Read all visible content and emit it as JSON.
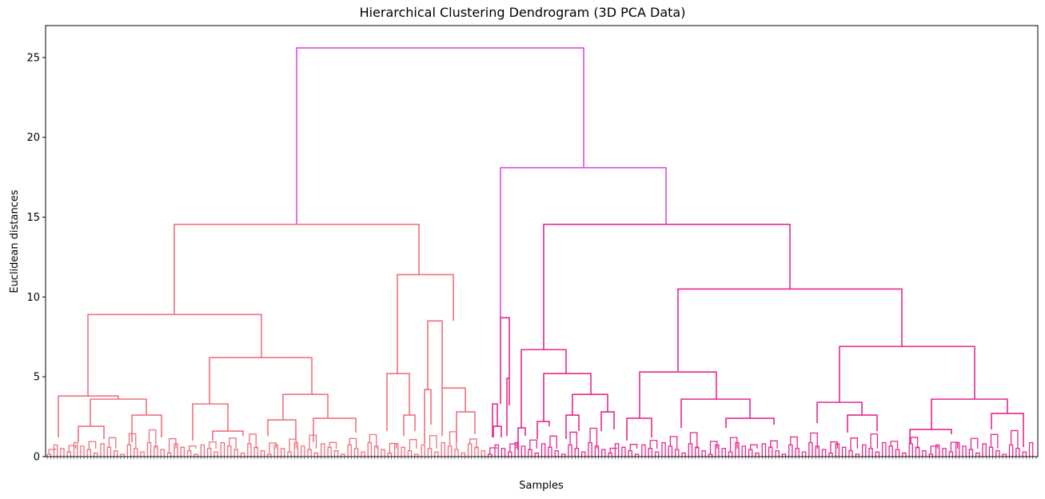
{
  "chart_data": {
    "type": "dendrogram",
    "title": "Hierarchical Clustering Dendrogram (3D PCA Data)",
    "xlabel": "Samples",
    "ylabel": "Euclidean distances",
    "ylim": [
      0,
      27
    ],
    "yticks": [
      0,
      5,
      10,
      15,
      20,
      25
    ],
    "grid": false,
    "colors": {
      "cluster_a": "#f0707e",
      "cluster_b": "#e8278e",
      "top": "#d94ee0"
    },
    "sample_count": 297,
    "merges": [
      {
        "x1": 0.02,
        "h1": 0,
        "x2": 0.28,
        "h2": 0,
        "h": 3.8
      },
      {
        "x1": 0.02,
        "h1": 0,
        "x2": 0.1,
        "h2": 0,
        "h": 1.2
      },
      {
        "x1": 0.14,
        "h1": 0,
        "x2": 0.28,
        "h2": 0,
        "h": 3.6
      },
      {
        "x1": 0.14,
        "h1": 0,
        "x2": 0.19,
        "h2": 0,
        "h": 1.9
      },
      {
        "x1": 0.24,
        "h1": 0,
        "x2": 0.33,
        "h2": 0,
        "h": 2.6
      },
      {
        "x1": 0.71,
        "h1": 0,
        "x2": 0.9,
        "h2": 0,
        "h": 3.3
      },
      {
        "x1": 0.66,
        "h1": 0,
        "x2": 0.8,
        "h2": 0,
        "h": 1.2
      },
      {
        "x1": 0.86,
        "h1": 0,
        "x2": 1.0,
        "h2": 0,
        "h": 1.7
      },
      {
        "x1": 1.22,
        "h1": 0,
        "x2": 1.62,
        "h2": 0,
        "h": 3.8
      },
      {
        "x1": 1.22,
        "h1": 0,
        "x2": 1.38,
        "h2": 0,
        "h": 2.3
      },
      {
        "x1": 1.55,
        "h1": 0,
        "x2": 1.7,
        "h2": 0,
        "h": 2.4
      },
      {
        "x1": 0.38,
        "h1": 0,
        "x2": 0.57,
        "h2": 0,
        "h": 1.0
      },
      {
        "x1": 1.95,
        "h1": 0,
        "x2": 2.1,
        "h2": 0,
        "h": 5.2
      },
      {
        "x1": 2.1,
        "h1": 0,
        "x2": 2.21,
        "h2": 0,
        "h": 2.6
      },
      {
        "x1": 2.31,
        "h1": 0,
        "x2": 2.46,
        "h2": 0,
        "h": 8.5
      },
      {
        "x1": 2.31,
        "h1": 0,
        "x2": 2.35,
        "h2": 0,
        "h": 4.2
      },
      {
        "x1": 2.37,
        "h1": 0,
        "x2": 2.56,
        "h2": 0,
        "h": 4.3
      },
      {
        "x1": 2.49,
        "h1": 0,
        "x2": 2.62,
        "h2": 0,
        "h": 2.8
      },
      {
        "x1": 2.66,
        "h1": 0,
        "x2": 2.75,
        "h2": 0,
        "h": 3.3
      },
      {
        "x1": 2.75,
        "h1": 0,
        "x2": 2.82,
        "h2": 0,
        "h": 8.7
      },
      {
        "x1": 2.83,
        "h1": 0,
        "x2": 2.85,
        "h2": 0,
        "h": 4.9
      },
      {
        "x1": 2.9,
        "h1": 0,
        "x2": 3.02,
        "h2": 0,
        "h": 1.8
      },
      {
        "x1": 3.08,
        "h1": 0,
        "x2": 3.16,
        "h2": 0,
        "h": 2.2
      },
      {
        "x1": 3.28,
        "h1": 0,
        "x2": 3.34,
        "h2": 0,
        "h": 2.7
      },
      {
        "x1": 3.35,
        "h1": 0,
        "x2": 3.52,
        "h2": 0,
        "h": 3.8
      },
      {
        "x1": 3.49,
        "h1": 0,
        "x2": 3.57,
        "h2": 0,
        "h": 2.8
      },
      {
        "x1": 3.68,
        "h1": 0,
        "x2": 3.8,
        "h2": 0,
        "h": 2.4
      },
      {
        "x1": 3.86,
        "h1": 0,
        "x2": 4.05,
        "h2": 0,
        "h": 1.5
      },
      {
        "x1": 4.2,
        "h1": 0,
        "x2": 4.4,
        "h2": 0,
        "h": 1.8
      },
      {
        "x1": 4.3,
        "h1": 0,
        "x2": 4.55,
        "h2": 0,
        "h": 2.4
      },
      {
        "x1": 4.55,
        "h1": 0,
        "x2": 4.68,
        "h2": 0,
        "h": 2.0
      },
      {
        "x1": 4.9,
        "h1": 0,
        "x2": 4.98,
        "h2": 0,
        "h": 2.1
      },
      {
        "x1": 4.98,
        "h1": 0,
        "x2": 5.2,
        "h2": 0,
        "h": 3.4
      },
      {
        "x1": 5.12,
        "h1": 0,
        "x2": 5.28,
        "h2": 0,
        "h": 2.6
      },
      {
        "x1": 5.45,
        "h1": 0,
        "x2": 5.7,
        "h2": 0,
        "h": 1.7
      },
      {
        "x1": 5.7,
        "h1": 0,
        "x2": 5.86,
        "h2": 0,
        "h": 2.7
      },
      {
        "x1": 5.64,
        "h1": 0,
        "x2": 5.86,
        "h2": 0,
        "h": 3.6
      }
    ]
  }
}
